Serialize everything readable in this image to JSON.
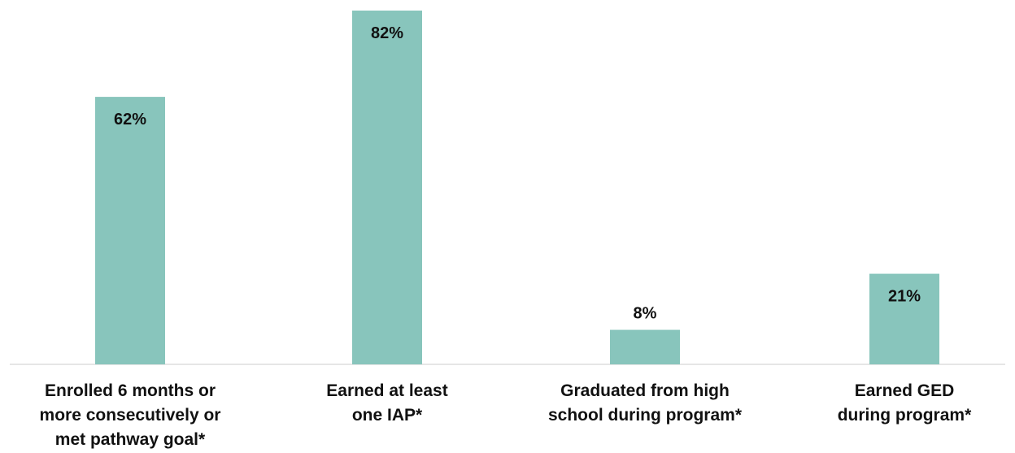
{
  "chart_data": {
    "type": "bar",
    "categories": [
      "Enrolled 6 months or more consecutively or met pathway goal*",
      "Earned at least one IAP*",
      "Graduated from high school during program*",
      "Earned GED during program*"
    ],
    "category_lines": [
      [
        "Enrolled 6 months or",
        "more consecutively or",
        "met pathway goal*"
      ],
      [
        "Earned at least",
        "one IAP*"
      ],
      [
        "Graduated from high",
        "school during program*"
      ],
      [
        "Earned GED",
        "during program*"
      ]
    ],
    "values": [
      62,
      82,
      8,
      21
    ],
    "value_labels": [
      "62%",
      "82%",
      "8%",
      "21%"
    ],
    "title": "",
    "xlabel": "",
    "ylabel": "",
    "ylim": [
      0,
      82
    ],
    "grid": false,
    "bar_color": "#88c5bc",
    "baseline_color": "#cccccc"
  }
}
